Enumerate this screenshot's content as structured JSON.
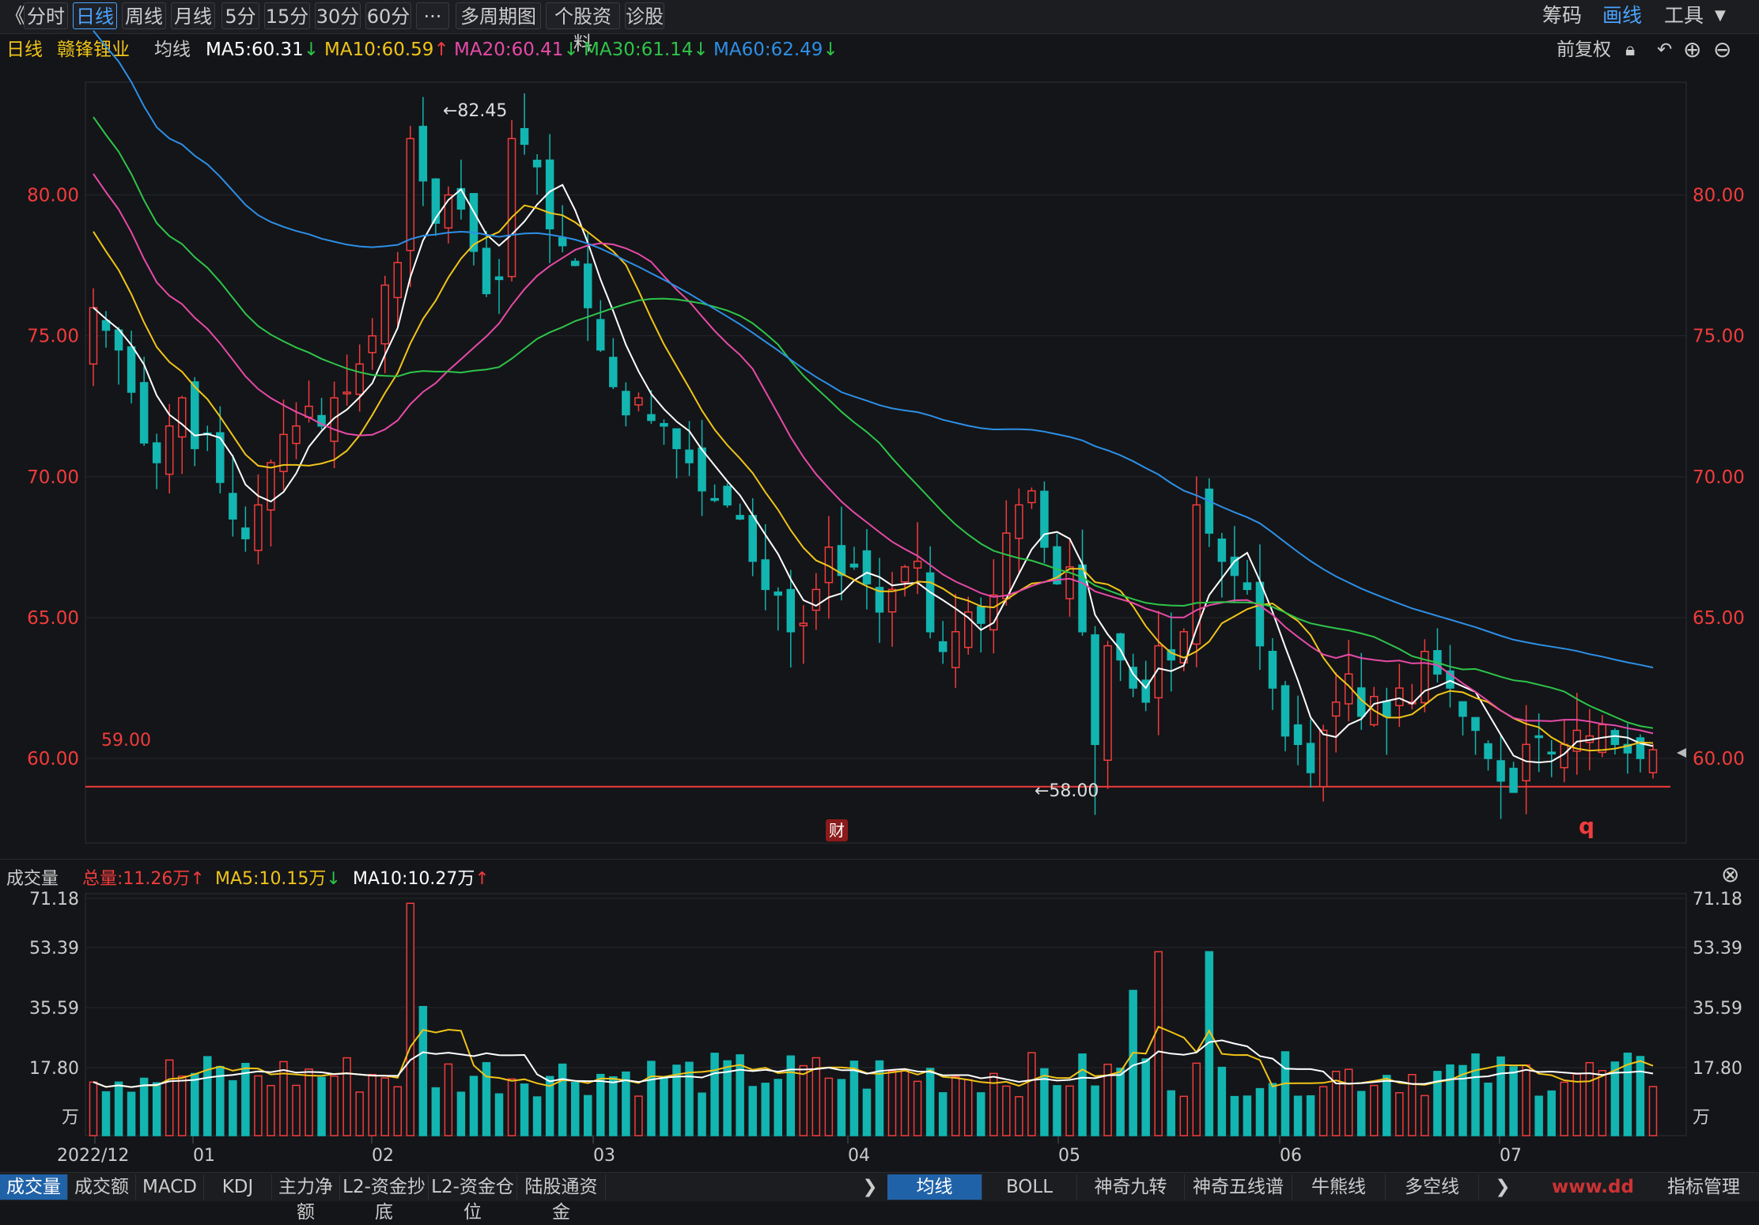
{
  "toolbar": {
    "back_glyph": "《",
    "tabs": [
      "分时",
      "日线",
      "周线",
      "月线",
      "5分",
      "15分",
      "30分",
      "60分",
      "···",
      "多周期图",
      "个股资料",
      "诊股"
    ],
    "active_tab": 1,
    "right": [
      "筹码",
      "画线",
      "工具"
    ]
  },
  "info": {
    "period": "日线",
    "stock_name": "赣锋锂业",
    "avg_label": "均线",
    "ma5": "MA5:60.31",
    "ma10": "MA10:60.59",
    "ma20": "MA20:60.41",
    "ma30": "MA30:61.14",
    "ma60": "MA60:62.49",
    "adjust": "前复权"
  },
  "price_axis": [
    "80.00",
    "75.00",
    "70.00",
    "65.00",
    "60.00"
  ],
  "annotations": {
    "high": "←82.45",
    "low": "←58.00",
    "support": "59.00",
    "cai": "财",
    "q": "q"
  },
  "volume_header": {
    "label": "成交量",
    "total": "总量:11.26万",
    "ma5": "MA5:10.15万",
    "ma10": "MA10:10.27万"
  },
  "volume_axis": [
    "71.18",
    "53.39",
    "35.59",
    "17.80",
    "万"
  ],
  "x_axis": [
    "2022/12",
    "01",
    "02",
    "03",
    "04",
    "05",
    "06",
    "07"
  ],
  "bottom_tabs_left": [
    "成交量",
    "成交额",
    "MACD",
    "KDJ",
    "主力净额",
    "L2-资金抄底",
    "L2-资金仓位",
    "陆股通资金"
  ],
  "bottom_tabs_right": [
    "均线",
    "BOLL",
    "神奇九转",
    "神奇五线谱",
    "牛熊线",
    "多空线"
  ],
  "bottom_right": "指标管理",
  "watermark": "www.dd",
  "colors": {
    "up": "#f03c3c",
    "down": "#13b5b1",
    "ma5": "#ffffff",
    "ma10": "#f0c419",
    "ma20": "#e64aa8",
    "ma30": "#2ec44a",
    "ma60": "#2d8fe6"
  },
  "chart_data": {
    "type": "candlestick",
    "price_range": [
      57.0,
      84.0
    ],
    "volume_range": [
      0,
      75
    ],
    "closes": [
      76.0,
      75.2,
      74.5,
      73.0,
      71.2,
      70.5,
      71.8,
      72.8,
      71.0,
      71.5,
      69.8,
      68.5,
      67.8,
      69.0,
      70.5,
      71.5,
      71.8,
      72.5,
      71.8,
      72.8,
      73.0,
      74.0,
      75.0,
      76.8,
      77.6,
      82.0,
      80.5,
      79.0,
      80.0,
      79.5,
      78.0,
      76.5,
      77.0,
      82.0,
      81.8,
      81.0,
      78.8,
      78.2,
      77.5,
      76.0,
      74.5,
      73.2,
      72.2,
      72.8,
      72.0,
      71.8,
      71.0,
      70.5,
      69.5,
      69.2,
      69.0,
      68.5,
      67.0,
      66.0,
      65.8,
      64.5,
      64.8,
      66.0,
      67.5,
      66.5,
      66.8,
      66.2,
      65.2,
      66.0,
      66.8,
      67.0,
      64.5,
      63.8,
      64.5,
      65.2,
      64.8,
      65.8,
      68.0,
      69.0,
      69.5,
      67.5,
      66.2,
      66.8,
      64.5,
      60.5,
      64.0,
      63.5,
      62.5,
      62.0,
      64.0,
      63.5,
      64.5,
      69.0,
      68.0,
      67.0,
      66.5,
      66.0,
      64.0,
      62.5,
      60.8,
      60.5,
      59.5,
      61.0,
      62.0,
      63.0,
      61.5,
      62.2,
      61.5,
      62.5,
      62.0,
      63.8,
      63.0,
      62.5,
      61.5,
      61.0,
      60.0,
      59.2,
      58.8,
      60.5,
      60.8,
      60.2,
      60.5,
      61.0,
      60.8,
      61.2,
      60.5,
      60.2,
      60.0,
      60.31
    ]
  }
}
